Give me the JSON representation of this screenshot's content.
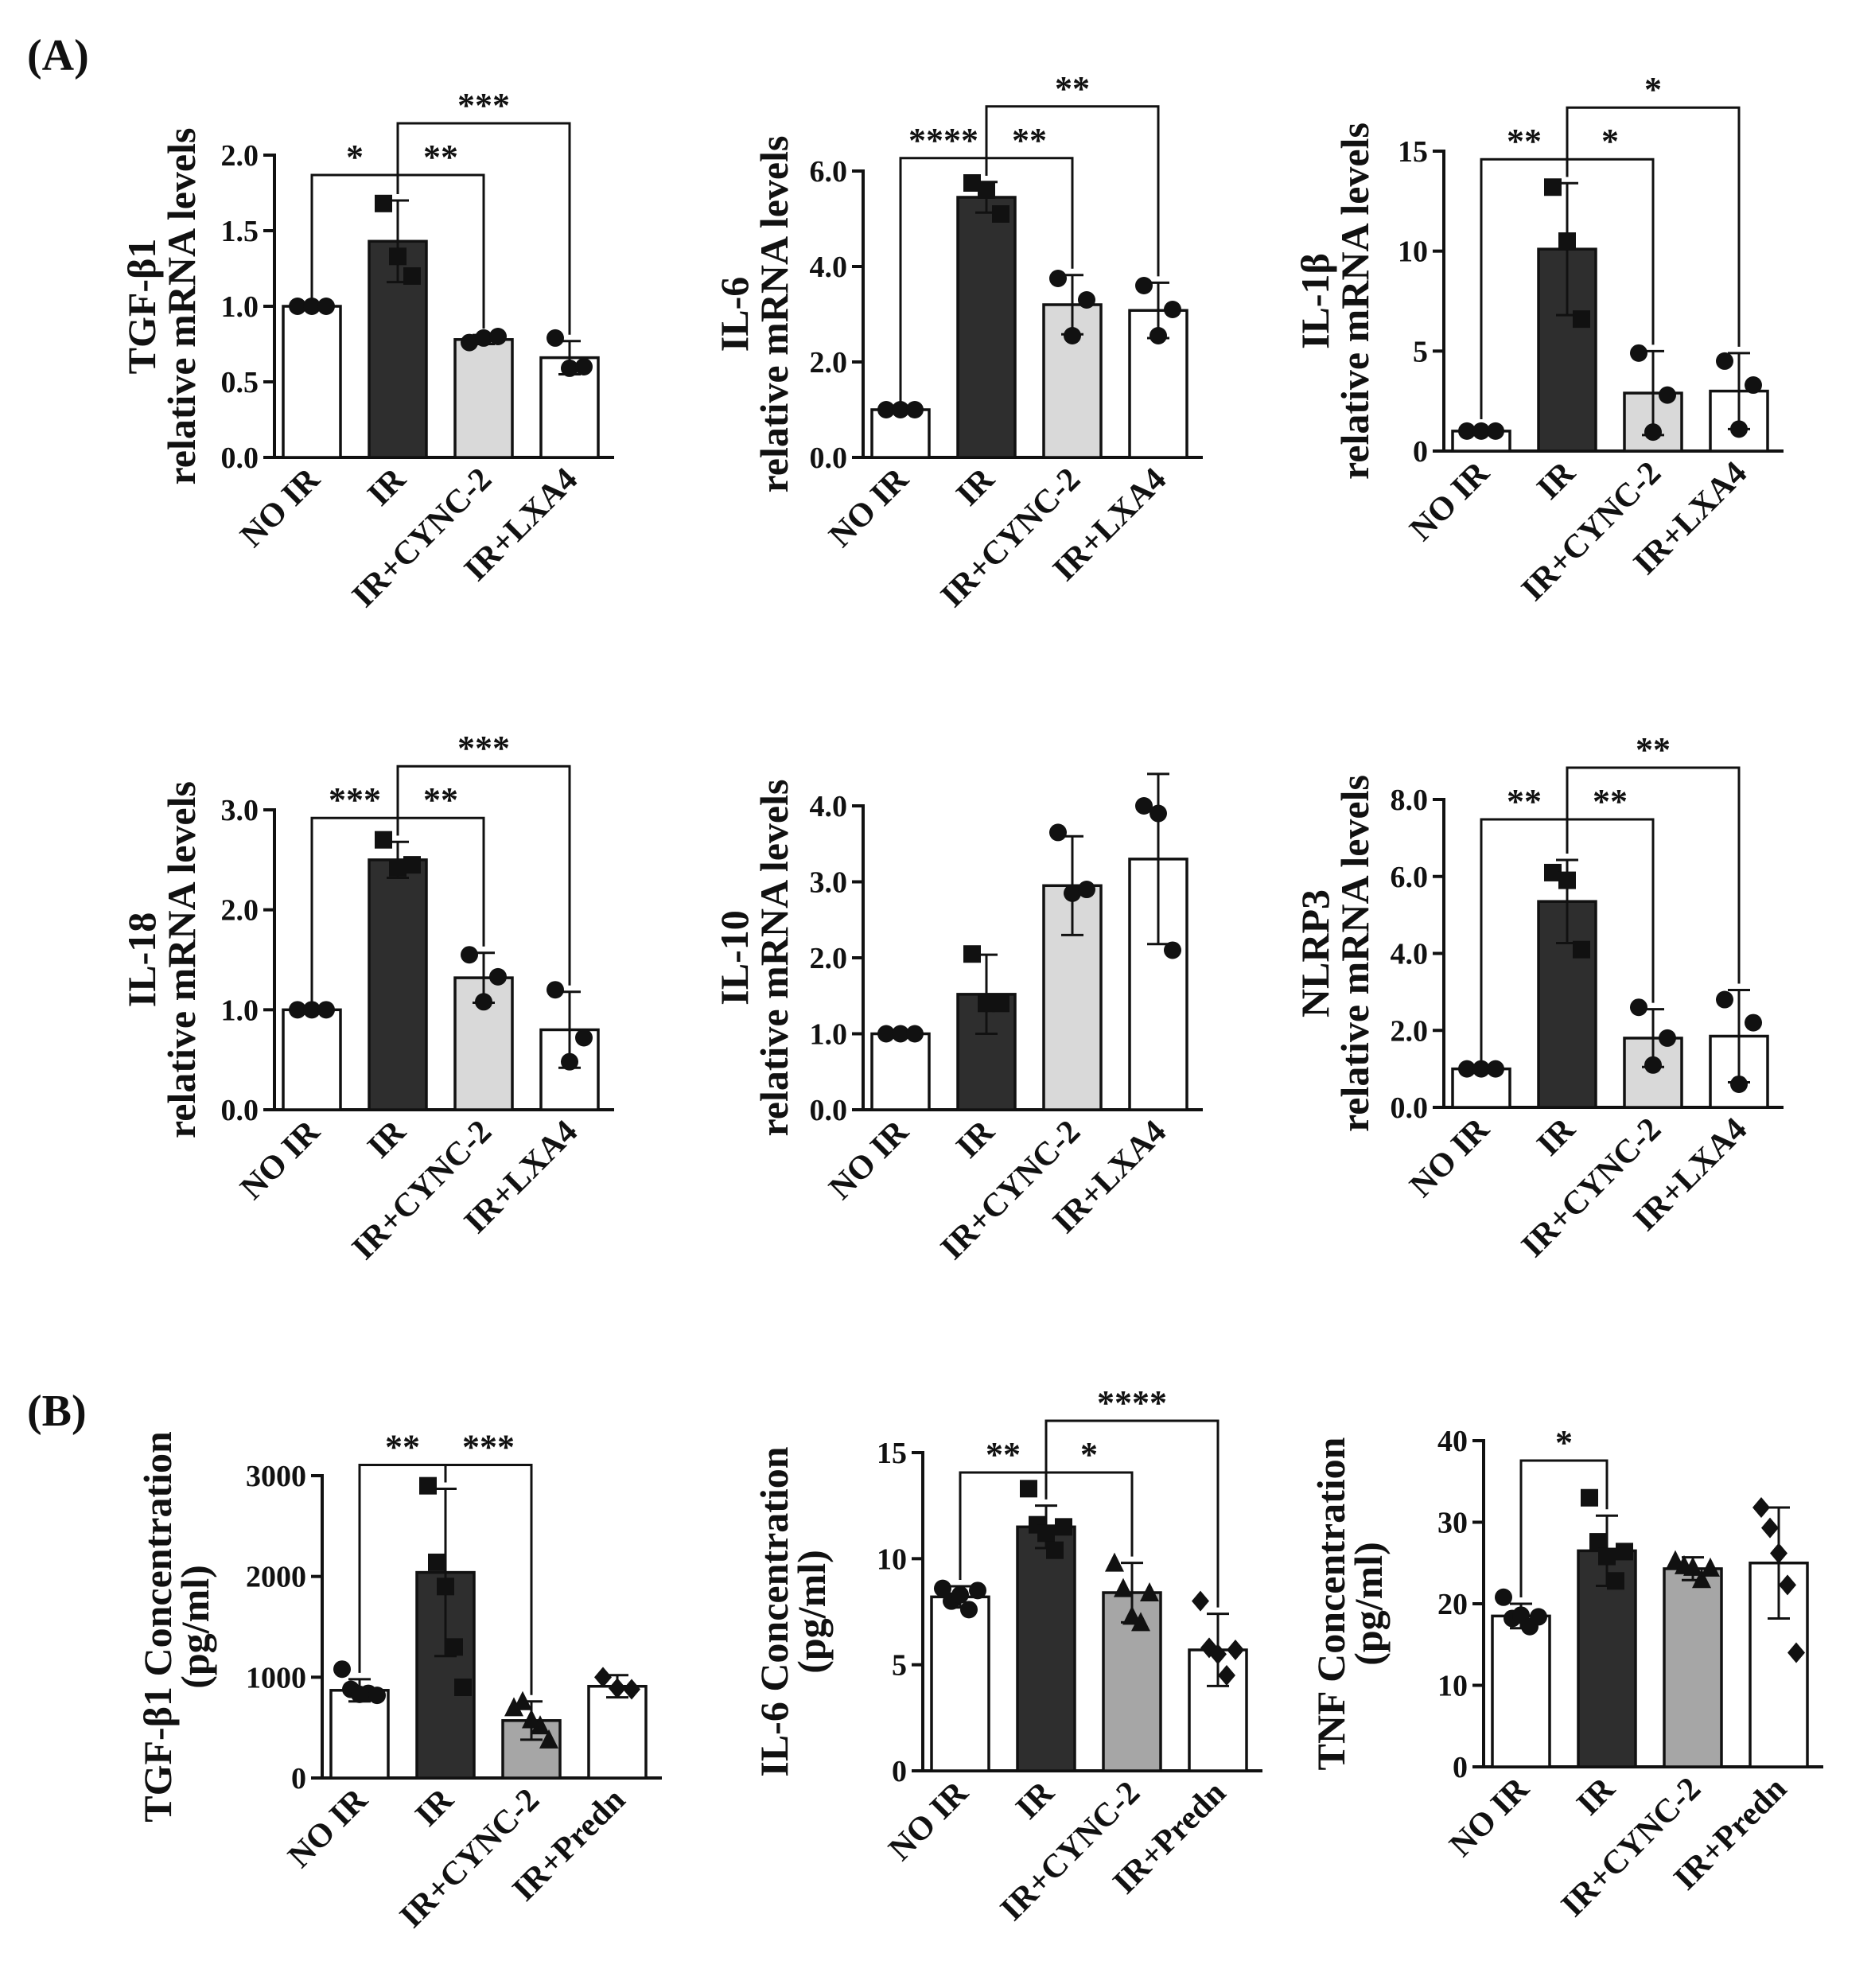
{
  "figure": {
    "panel_labels": [
      "(A)",
      "(B)"
    ]
  },
  "colors": {
    "white": "#ffffff",
    "dark": "#2e2e2e",
    "light_gray": "#d9d9d9",
    "mid_gray": "#a6a6a6",
    "ink": "#111111"
  },
  "chart_data": [
    {
      "id": "tgfb1-mrna",
      "type": "bar",
      "ylabel_line1": "TGF-β1",
      "ylabel_line2": "relative mRNA levels",
      "categories": [
        "NO IR",
        "IR",
        "IR+CYNC-2",
        "IR+LXA4"
      ],
      "values": [
        1.0,
        1.43,
        0.78,
        0.66
      ],
      "errors": [
        0.0,
        0.27,
        0.03,
        0.11
      ],
      "points": [
        [
          1.0,
          1.0,
          1.0
        ],
        [
          1.68,
          1.33,
          1.2
        ],
        [
          0.76,
          0.79,
          0.8
        ],
        [
          0.79,
          0.59,
          0.6
        ]
      ],
      "fills": [
        "white",
        "dark",
        "light_gray",
        "white"
      ],
      "marker": [
        "circle",
        "square",
        "circle",
        "circle"
      ],
      "ylim": [
        0,
        2.0
      ],
      "yticks": [
        "0.0",
        "0.5",
        "1.0",
        "1.5",
        "2.0"
      ],
      "ytick_values": [
        0,
        0.5,
        1.0,
        1.5,
        2.0
      ],
      "significance": [
        {
          "from": 0,
          "to": 1,
          "label": "*",
          "level": 0
        },
        {
          "from": 1,
          "to": 2,
          "label": "**",
          "level": 0
        },
        {
          "from": 1,
          "to": 3,
          "label": "***",
          "level": 1
        }
      ]
    },
    {
      "id": "il6-mrna",
      "type": "bar",
      "ylabel_line1": "IL-6",
      "ylabel_line2": "relative mRNA levels",
      "categories": [
        "NO IR",
        "IR",
        "IR+CYNC-2",
        "IR+LXA4"
      ],
      "values": [
        1.0,
        5.45,
        3.2,
        3.08
      ],
      "errors": [
        0.0,
        0.32,
        0.62,
        0.58
      ],
      "points": [
        [
          1.0,
          1.0,
          1.0
        ],
        [
          5.75,
          5.6,
          5.1
        ],
        [
          3.75,
          2.55,
          3.3
        ],
        [
          3.6,
          2.55,
          3.1
        ]
      ],
      "fills": [
        "white",
        "dark",
        "light_gray",
        "white"
      ],
      "marker": [
        "circle",
        "square",
        "circle",
        "circle"
      ],
      "ylim": [
        0,
        6.0
      ],
      "yticks": [
        "0.0",
        "2.0",
        "4.0",
        "6.0"
      ],
      "ytick_values": [
        0,
        2,
        4,
        6
      ],
      "significance": [
        {
          "from": 0,
          "to": 1,
          "label": "****",
          "level": 0
        },
        {
          "from": 1,
          "to": 2,
          "label": "**",
          "level": 0
        },
        {
          "from": 1,
          "to": 3,
          "label": "**",
          "level": 1
        }
      ]
    },
    {
      "id": "il1b-mrna",
      "type": "bar",
      "ylabel_line1": "IL-1β",
      "ylabel_line2": "relative mRNA levels",
      "categories": [
        "NO IR",
        "IR",
        "IR+CYNC-2",
        "IR+LXA4"
      ],
      "values": [
        1.0,
        10.1,
        2.9,
        3.0
      ],
      "errors": [
        0.0,
        3.3,
        2.1,
        1.9
      ],
      "points": [
        [
          1.0,
          1.0,
          1.0
        ],
        [
          13.2,
          10.5,
          6.6
        ],
        [
          4.9,
          0.95,
          2.8
        ],
        [
          4.5,
          1.1,
          3.3
        ]
      ],
      "fills": [
        "white",
        "dark",
        "light_gray",
        "white"
      ],
      "marker": [
        "circle",
        "square",
        "circle",
        "circle"
      ],
      "ylim": [
        0,
        15
      ],
      "yticks": [
        "0",
        "5",
        "10",
        "15"
      ],
      "ytick_values": [
        0,
        5,
        10,
        15
      ],
      "significance": [
        {
          "from": 0,
          "to": 1,
          "label": "**",
          "level": 0
        },
        {
          "from": 1,
          "to": 2,
          "label": "*",
          "level": 0
        },
        {
          "from": 1,
          "to": 3,
          "label": "*",
          "level": 1
        }
      ]
    },
    {
      "id": "il18-mrna",
      "type": "bar",
      "ylabel_line1": "IL-18",
      "ylabel_line2": "relative mRNA levels",
      "categories": [
        "NO IR",
        "IR",
        "IR+CYNC-2",
        "IR+LXA4"
      ],
      "values": [
        1.0,
        2.5,
        1.32,
        0.8
      ],
      "errors": [
        0.0,
        0.18,
        0.25,
        0.38
      ],
      "points": [
        [
          1.0,
          1.0,
          1.0
        ],
        [
          2.7,
          2.42,
          2.45
        ],
        [
          1.55,
          1.08,
          1.33
        ],
        [
          1.2,
          0.48,
          0.72
        ]
      ],
      "fills": [
        "white",
        "dark",
        "light_gray",
        "white"
      ],
      "marker": [
        "circle",
        "square",
        "circle",
        "circle"
      ],
      "ylim": [
        0,
        3.0
      ],
      "yticks": [
        "0.0",
        "1.0",
        "2.0",
        "3.0"
      ],
      "ytick_values": [
        0,
        1,
        2,
        3
      ],
      "significance": [
        {
          "from": 0,
          "to": 1,
          "label": "***",
          "level": 0
        },
        {
          "from": 1,
          "to": 2,
          "label": "**",
          "level": 0
        },
        {
          "from": 1,
          "to": 3,
          "label": "***",
          "level": 1
        }
      ]
    },
    {
      "id": "il10-mrna",
      "type": "bar",
      "ylabel_line1": "IL-10",
      "ylabel_line2": "relative mRNA levels",
      "categories": [
        "NO IR",
        "IR",
        "IR+CYNC-2",
        "IR+LXA4"
      ],
      "values": [
        1.0,
        1.52,
        2.95,
        3.3
      ],
      "errors": [
        0.0,
        0.52,
        0.65,
        1.12
      ],
      "points": [
        [
          1.0,
          1.0,
          1.0
        ],
        [
          2.05,
          1.4,
          1.4
        ],
        [
          3.65,
          2.85,
          2.9
        ],
        [
          4.0,
          3.9,
          2.1
        ]
      ],
      "fills": [
        "white",
        "dark",
        "light_gray",
        "white"
      ],
      "marker": [
        "circle",
        "square",
        "circle",
        "circle"
      ],
      "ylim": [
        0,
        4.0
      ],
      "yticks": [
        "0.0",
        "1.0",
        "2.0",
        "3.0",
        "4.0"
      ],
      "ytick_values": [
        0,
        1,
        2,
        3,
        4
      ],
      "significance": []
    },
    {
      "id": "nlrp3-mrna",
      "type": "bar",
      "ylabel_line1": "NLRP3",
      "ylabel_line2": "relative mRNA levels",
      "categories": [
        "NO IR",
        "IR",
        "IR+CYNC-2",
        "IR+LXA4"
      ],
      "values": [
        1.0,
        5.35,
        1.8,
        1.85
      ],
      "errors": [
        0.0,
        1.08,
        0.75,
        1.2
      ],
      "points": [
        [
          1.0,
          1.0,
          1.0
        ],
        [
          6.1,
          5.9,
          4.1
        ],
        [
          2.6,
          1.1,
          1.8
        ],
        [
          2.8,
          0.6,
          2.2
        ]
      ],
      "fills": [
        "white",
        "dark",
        "light_gray",
        "white"
      ],
      "marker": [
        "circle",
        "square",
        "circle",
        "circle"
      ],
      "ylim": [
        0,
        8.0
      ],
      "yticks": [
        "0.0",
        "2.0",
        "4.0",
        "6.0",
        "8.0"
      ],
      "ytick_values": [
        0,
        2,
        4,
        6,
        8
      ],
      "significance": [
        {
          "from": 0,
          "to": 1,
          "label": "**",
          "level": 0
        },
        {
          "from": 1,
          "to": 2,
          "label": "**",
          "level": 0
        },
        {
          "from": 1,
          "to": 3,
          "label": "**",
          "level": 1
        }
      ]
    },
    {
      "id": "tgfb1-conc",
      "type": "bar",
      "ylabel_line1": "TGF-β1 Concentration",
      "ylabel_line2": "(pg/ml)",
      "categories": [
        "NO IR",
        "IR",
        "IR+CYNC-2",
        "IR+Predn"
      ],
      "values": [
        870,
        2040,
        570,
        910
      ],
      "errors": [
        110,
        830,
        190,
        110
      ],
      "points": [
        [
          1080,
          880,
          830,
          840,
          820
        ],
        [
          2900,
          2140,
          1900,
          1300,
          900
        ],
        [
          700,
          760,
          580,
          520,
          380
        ],
        [
          1000,
          890,
          880
        ]
      ],
      "fills": [
        "white",
        "dark",
        "mid_gray",
        "white"
      ],
      "marker": [
        "circle",
        "square",
        "triangle",
        "diamond"
      ],
      "ylim": [
        0,
        3000
      ],
      "yticks": [
        "0",
        "1000",
        "2000",
        "3000"
      ],
      "ytick_values": [
        0,
        1000,
        2000,
        3000
      ],
      "significance": [
        {
          "from": 0,
          "to": 1,
          "label": "**",
          "level": 0
        },
        {
          "from": 1,
          "to": 2,
          "label": "***",
          "level": 0
        }
      ]
    },
    {
      "id": "il6-conc",
      "type": "bar",
      "ylabel_line1": "IL-6 Concentration",
      "ylabel_line2": "(pg/ml)",
      "categories": [
        "NO IR",
        "IR",
        "IR+CYNC-2",
        "IR+Predn"
      ],
      "values": [
        8.2,
        11.5,
        8.4,
        5.7
      ],
      "errors": [
        0.5,
        1.0,
        1.4,
        1.7
      ],
      "points": [
        [
          8.6,
          8.0,
          8.3,
          7.6,
          8.5
        ],
        [
          13.3,
          11.6,
          11.2,
          10.4,
          11.5
        ],
        [
          9.8,
          8.6,
          7.3,
          7.0,
          8.4
        ],
        [
          8.0,
          5.8,
          5.5,
          4.5,
          5.7
        ]
      ],
      "fills": [
        "white",
        "dark",
        "mid_gray",
        "white"
      ],
      "marker": [
        "circle",
        "square",
        "triangle",
        "diamond"
      ],
      "ylim": [
        0,
        15
      ],
      "yticks": [
        "0",
        "5",
        "10",
        "15"
      ],
      "ytick_values": [
        0,
        5,
        10,
        15
      ],
      "significance": [
        {
          "from": 0,
          "to": 1,
          "label": "**",
          "level": 0
        },
        {
          "from": 1,
          "to": 2,
          "label": "*",
          "level": 0
        },
        {
          "from": 1,
          "to": 3,
          "label": "****",
          "level": 1
        }
      ]
    },
    {
      "id": "tnf-conc",
      "type": "bar",
      "ylabel_line1": "TNF Concentration",
      "ylabel_line2": "(pg/ml)",
      "categories": [
        "NO IR",
        "IR",
        "IR+CYNC-2",
        "IR+Predn"
      ],
      "values": [
        18.5,
        26.5,
        24.3,
        25.0
      ],
      "errors": [
        1.5,
        4.3,
        1.4,
        6.8
      ],
      "points": [
        [
          20.8,
          18.2,
          18.6,
          17.2,
          18.4
        ],
        [
          33.0,
          27.6,
          25.8,
          22.8,
          26.4
        ],
        [
          25.3,
          24.7,
          24.5,
          23.0,
          24.4
        ],
        [
          31.8,
          29.3,
          26.2,
          22.3,
          14.0
        ]
      ],
      "fills": [
        "white",
        "dark",
        "mid_gray",
        "white"
      ],
      "marker": [
        "circle",
        "square",
        "triangle",
        "diamond"
      ],
      "ylim": [
        0,
        40
      ],
      "yticks": [
        "0",
        "10",
        "20",
        "30",
        "40"
      ],
      "ytick_values": [
        0,
        10,
        20,
        30,
        40
      ],
      "significance": [
        {
          "from": 0,
          "to": 1,
          "label": "*",
          "level": 0
        }
      ]
    }
  ]
}
